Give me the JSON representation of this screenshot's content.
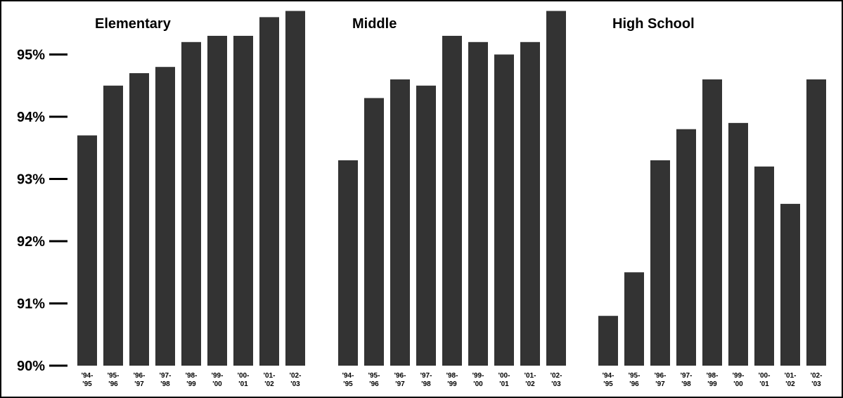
{
  "chart_data": {
    "type": "bar",
    "ylim": [
      90,
      95.75
    ],
    "y_ticks": [
      {
        "value": 90,
        "label": "90%"
      },
      {
        "value": 91,
        "label": "91%"
      },
      {
        "value": 92,
        "label": "92%"
      },
      {
        "value": 93,
        "label": "93%"
      },
      {
        "value": 94,
        "label": "94%"
      },
      {
        "value": 95,
        "label": "95%"
      }
    ],
    "grid": false,
    "categories": [
      [
        "'94-",
        "'95"
      ],
      [
        "'95-",
        "'96"
      ],
      [
        "'96-",
        "'97"
      ],
      [
        "'97-",
        "'98"
      ],
      [
        "'98-",
        "'99"
      ],
      [
        "'99-",
        "'00"
      ],
      [
        "'00-",
        "'01"
      ],
      [
        "'01-",
        "'02"
      ],
      [
        "'02-",
        "'03"
      ]
    ],
    "panels": [
      {
        "title": "Elementary",
        "values": [
          93.7,
          94.5,
          94.7,
          94.8,
          95.2,
          95.3,
          95.3,
          95.6,
          95.7
        ]
      },
      {
        "title": "Middle",
        "values": [
          93.3,
          94.3,
          94.6,
          94.5,
          95.3,
          95.2,
          95.0,
          95.2,
          95.7
        ]
      },
      {
        "title": "High School",
        "values": [
          90.8,
          91.5,
          93.3,
          93.8,
          94.6,
          93.9,
          93.2,
          92.6,
          94.6
        ]
      }
    ]
  }
}
